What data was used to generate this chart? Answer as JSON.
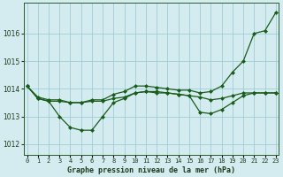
{
  "title": "Graphe pression niveau de la mer (hPa)",
  "bg_color": "#d4ecf0",
  "grid_color": "#9fccd8",
  "line_color": "#1a5c1a",
  "x_vals": [
    0,
    1,
    2,
    3,
    4,
    5,
    6,
    7,
    8,
    9,
    10,
    11,
    12,
    13,
    14,
    15,
    16,
    17,
    18,
    19,
    20,
    21,
    22,
    23
  ],
  "x_labels": [
    "0",
    "1",
    "2",
    "3",
    "4",
    "5",
    "6",
    "7",
    "8",
    "9",
    "10",
    "11",
    "12",
    "13",
    "14",
    "15",
    "16",
    "17",
    "18",
    "19",
    "20",
    "21",
    "22",
    "23"
  ],
  "ylim": [
    1011.6,
    1017.1
  ],
  "yticks": [
    1012,
    1013,
    1014,
    1015,
    1016
  ],
  "line_top": [
    1014.1,
    1013.7,
    1013.6,
    1013.6,
    1013.5,
    1013.5,
    1013.6,
    1013.6,
    1013.8,
    1013.9,
    1014.1,
    1014.1,
    1014.05,
    1014.0,
    1013.95,
    1013.95,
    1013.85,
    1013.9,
    1014.1,
    1014.6,
    1015.0,
    1016.0,
    1016.1,
    1016.75
  ],
  "line_mid": [
    1014.1,
    1013.65,
    1013.55,
    1013.55,
    1013.5,
    1013.5,
    1013.55,
    1013.55,
    1013.65,
    1013.7,
    1013.85,
    1013.9,
    1013.9,
    1013.85,
    1013.8,
    1013.75,
    1013.7,
    1013.6,
    1013.65,
    1013.75,
    1013.85,
    1013.85,
    1013.85,
    1013.85
  ],
  "line_bot": [
    1014.1,
    1013.65,
    1013.55,
    1013.0,
    1012.6,
    1012.5,
    1012.5,
    1013.0,
    1013.5,
    1013.65,
    1013.85,
    1013.9,
    1013.85,
    1013.85,
    1013.8,
    1013.75,
    1013.15,
    1013.1,
    1013.25,
    1013.5,
    1013.75,
    1013.85,
    1013.85,
    1013.85
  ]
}
